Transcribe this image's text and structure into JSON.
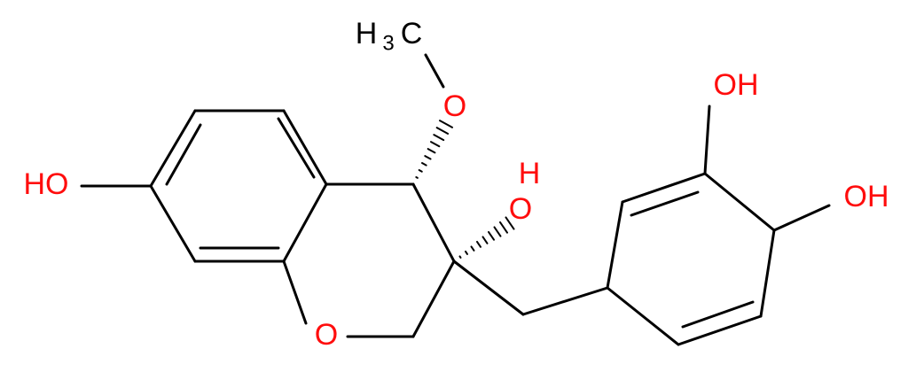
{
  "methyl": {
    "h": "H",
    "sub": "3",
    "c": "C"
  },
  "methoxy_o": "O",
  "ring_o": "O",
  "c3_hydroxyl": {
    "o": "O",
    "h": "H"
  },
  "hydroxyl_left": "HO",
  "hydroxyl_top": "OH",
  "hydroxyl_right": "OH"
}
